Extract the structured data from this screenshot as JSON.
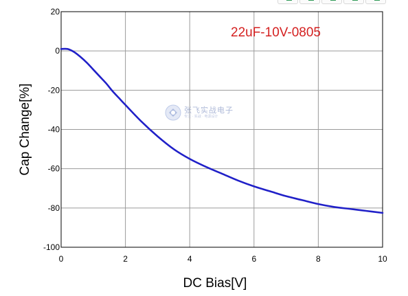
{
  "chart_data": {
    "type": "line",
    "title": "",
    "annotation": "22uF-10V-0805",
    "xlabel": "DC Bias[V]",
    "ylabel": "Cap Change[%]",
    "xlim": [
      0,
      10
    ],
    "ylim": [
      -100,
      20
    ],
    "x_ticks": [
      0,
      2,
      4,
      6,
      8,
      10
    ],
    "y_ticks": [
      20,
      0,
      -20,
      -40,
      -60,
      -80,
      -100
    ],
    "x_tick_labels": [
      "0",
      "2",
      "4",
      "6",
      "8",
      "10"
    ],
    "y_tick_labels": [
      "20",
      "0",
      "-20",
      "-40",
      "-60",
      "-80",
      "-100"
    ],
    "grid": true,
    "legend": "none",
    "series": [
      {
        "color": "#2020c8",
        "x": [
          0,
          0.2,
          0.4,
          0.6,
          0.8,
          1.0,
          1.2,
          1.4,
          1.6,
          1.8,
          2.0,
          2.5,
          3.0,
          3.5,
          4.0,
          4.5,
          5.0,
          5.5,
          6.0,
          6.5,
          7.0,
          7.5,
          8.0,
          8.5,
          9.0,
          9.5,
          10.0
        ],
        "y": [
          1,
          1,
          -0.5,
          -3,
          -6,
          -9.5,
          -13,
          -16.5,
          -20.5,
          -24,
          -27.5,
          -36,
          -43.5,
          -50,
          -55,
          -59,
          -62.5,
          -66,
          -69,
          -71.5,
          -74,
          -76,
          -78,
          -79.5,
          -80.5,
          -81.5,
          -82.5
        ]
      }
    ],
    "annotation_color": "#d42020"
  },
  "watermark": {
    "main": "张飞实战电子",
    "sub": "专注 · 实战 · 电源设计"
  },
  "toolbar": {
    "icon_names": [
      "edit-icon",
      "image-icon",
      "copy-icon",
      "chart-icon",
      "more-icon"
    ]
  }
}
